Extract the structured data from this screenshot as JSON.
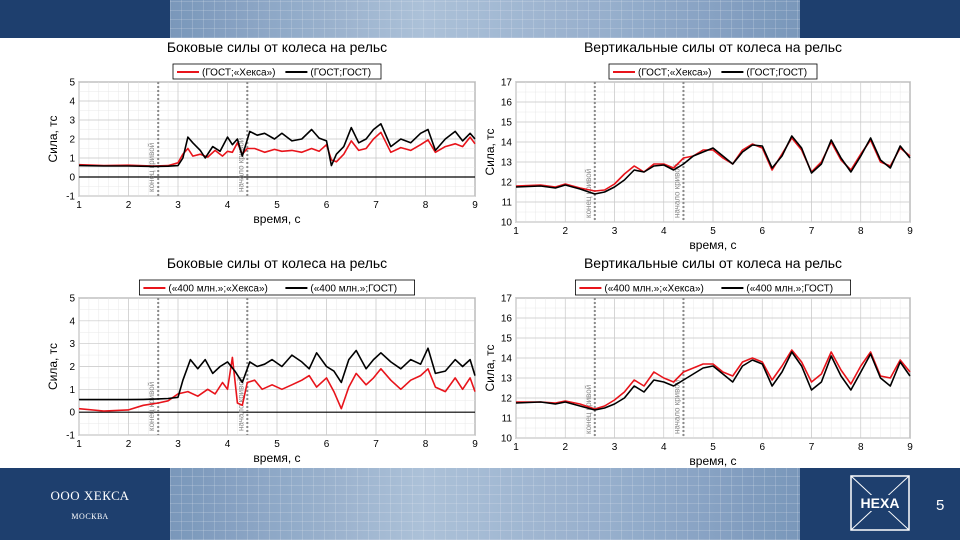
{
  "footer": {
    "company": "ООО ХЕКСА",
    "city": "МОСКВА",
    "logo_text": "HEXA",
    "page_number": "5"
  },
  "colors": {
    "band": "#1e3f6e",
    "series_red": "#e8141b",
    "series_black": "#000000",
    "marker": "#8a8a8a"
  },
  "chart_data": [
    {
      "type": "line",
      "title": "Боковые силы от колеса на рельс",
      "xlabel": "время, с",
      "ylabel": "Сила, тс",
      "xlim": [
        1,
        9
      ],
      "ylim": [
        -1,
        5
      ],
      "xticks": [
        1,
        2,
        3,
        4,
        5,
        6,
        7,
        8,
        9
      ],
      "yticks": [
        -1,
        0,
        1,
        2,
        3,
        4,
        5
      ],
      "grid": true,
      "legend": "top-center",
      "markers": [
        {
          "x": 2.6,
          "label": "конец кривой"
        },
        {
          "x": 4.4,
          "label": "начало кривой"
        }
      ],
      "series": [
        {
          "name": "(ГОСТ;«Хекса»)",
          "color": "#e8141b",
          "x": [
            1,
            1.5,
            2,
            2.5,
            2.8,
            3.0,
            3.1,
            3.2,
            3.3,
            3.45,
            3.6,
            3.75,
            3.9,
            4.0,
            4.1,
            4.2,
            4.3,
            4.4,
            4.55,
            4.75,
            4.95,
            5.1,
            5.3,
            5.5,
            5.7,
            5.85,
            6.0,
            6.1,
            6.2,
            6.35,
            6.5,
            6.65,
            6.8,
            6.95,
            7.1,
            7.3,
            7.5,
            7.7,
            7.9,
            8.05,
            8.2,
            8.4,
            8.6,
            8.75,
            8.9,
            9.0
          ],
          "y": [
            0.65,
            0.6,
            0.62,
            0.58,
            0.6,
            0.75,
            1.2,
            1.5,
            1.1,
            1.2,
            1.05,
            1.4,
            1.1,
            1.35,
            1.3,
            1.8,
            1.2,
            1.5,
            1.5,
            1.3,
            1.45,
            1.35,
            1.4,
            1.3,
            1.5,
            1.35,
            1.7,
            0.9,
            0.8,
            1.2,
            1.9,
            1.4,
            1.5,
            2.0,
            2.35,
            1.3,
            1.55,
            1.4,
            1.7,
            1.95,
            1.3,
            1.6,
            1.75,
            1.6,
            2.1,
            1.75
          ]
        },
        {
          "name": "(ГОСТ;ГОСТ)",
          "color": "#000000",
          "x": [
            1,
            1.5,
            2,
            2.5,
            2.8,
            3.0,
            3.1,
            3.2,
            3.3,
            3.45,
            3.55,
            3.7,
            3.85,
            4.0,
            4.1,
            4.2,
            4.3,
            4.45,
            4.6,
            4.75,
            4.95,
            5.1,
            5.3,
            5.5,
            5.7,
            5.85,
            6.0,
            6.1,
            6.2,
            6.35,
            6.5,
            6.65,
            6.8,
            6.95,
            7.1,
            7.3,
            7.5,
            7.7,
            7.9,
            8.05,
            8.2,
            8.4,
            8.6,
            8.75,
            8.9,
            9.0
          ],
          "y": [
            0.6,
            0.58,
            0.58,
            0.56,
            0.57,
            0.6,
            1.0,
            2.1,
            1.8,
            1.4,
            1.0,
            1.6,
            1.35,
            2.1,
            1.7,
            2.0,
            1.1,
            2.4,
            2.2,
            2.3,
            2.0,
            2.3,
            1.9,
            2.0,
            2.5,
            2.05,
            1.9,
            0.6,
            1.2,
            1.6,
            2.6,
            1.8,
            2.0,
            2.5,
            2.8,
            1.6,
            2.0,
            1.8,
            2.3,
            2.5,
            1.4,
            2.0,
            2.4,
            1.9,
            2.3,
            2.0
          ]
        }
      ]
    },
    {
      "type": "line",
      "title": "Вертикальные силы от колеса на рельс",
      "xlabel": "время, с",
      "ylabel": "Сила, тс",
      "xlim": [
        1,
        9
      ],
      "ylim": [
        10,
        17
      ],
      "xticks": [
        1,
        2,
        3,
        4,
        5,
        6,
        7,
        8,
        9
      ],
      "yticks": [
        10,
        11,
        12,
        13,
        14,
        15,
        16,
        17
      ],
      "grid": true,
      "legend": "top-center",
      "markers": [
        {
          "x": 2.6,
          "label": "конец кривой"
        },
        {
          "x": 4.4,
          "label": "начало кривой"
        }
      ],
      "series": [
        {
          "name": "(ГОСТ;«Хекса»)",
          "color": "#e8141b",
          "x": [
            1,
            1.5,
            1.8,
            2.0,
            2.3,
            2.6,
            2.8,
            3.0,
            3.2,
            3.4,
            3.6,
            3.8,
            4.0,
            4.2,
            4.4,
            4.6,
            4.8,
            5.0,
            5.2,
            5.4,
            5.6,
            5.8,
            6.0,
            6.2,
            6.4,
            6.6,
            6.8,
            7.0,
            7.2,
            7.4,
            7.6,
            7.8,
            8.0,
            8.2,
            8.4,
            8.6,
            8.8,
            9.0
          ],
          "y": [
            11.8,
            11.85,
            11.75,
            11.9,
            11.7,
            11.55,
            11.6,
            11.9,
            12.4,
            12.8,
            12.5,
            12.9,
            12.9,
            12.7,
            13.2,
            13.3,
            13.6,
            13.6,
            13.2,
            12.9,
            13.6,
            13.9,
            13.7,
            12.6,
            13.4,
            14.2,
            13.6,
            12.5,
            13.0,
            14.0,
            13.1,
            12.6,
            13.4,
            14.1,
            13.0,
            12.8,
            13.7,
            13.3
          ]
        },
        {
          "name": "(ГОСТ;ГОСТ)",
          "color": "#000000",
          "x": [
            1,
            1.5,
            1.8,
            2.0,
            2.3,
            2.6,
            2.8,
            3.0,
            3.2,
            3.4,
            3.6,
            3.8,
            4.0,
            4.2,
            4.4,
            4.6,
            4.8,
            5.0,
            5.2,
            5.4,
            5.6,
            5.8,
            6.0,
            6.2,
            6.4,
            6.6,
            6.8,
            7.0,
            7.2,
            7.4,
            7.6,
            7.8,
            8.0,
            8.2,
            8.4,
            8.6,
            8.8,
            9.0
          ],
          "y": [
            11.75,
            11.8,
            11.7,
            11.85,
            11.65,
            11.4,
            11.5,
            11.75,
            12.1,
            12.6,
            12.5,
            12.8,
            12.85,
            12.6,
            12.9,
            13.3,
            13.5,
            13.7,
            13.3,
            12.9,
            13.5,
            13.85,
            13.8,
            12.7,
            13.3,
            14.3,
            13.7,
            12.45,
            12.9,
            14.1,
            13.2,
            12.5,
            13.3,
            14.2,
            13.1,
            12.7,
            13.8,
            13.2
          ]
        }
      ]
    },
    {
      "type": "line",
      "title": "Боковые силы от колеса на рельс",
      "xlabel": "время, с",
      "ylabel": "Сила, тс",
      "xlim": [
        1,
        9
      ],
      "ylim": [
        -1,
        5
      ],
      "xticks": [
        1,
        2,
        3,
        4,
        5,
        6,
        7,
        8,
        9
      ],
      "yticks": [
        -1,
        0,
        1,
        2,
        3,
        4,
        5
      ],
      "grid": true,
      "legend": "top-center",
      "markers": [
        {
          "x": 2.6,
          "label": "конец кривой"
        },
        {
          "x": 4.4,
          "label": "начало кривой"
        }
      ],
      "series": [
        {
          "name": "(«400 млн.»;«Хекса»)",
          "color": "#e8141b",
          "x": [
            1,
            1.5,
            2,
            2.3,
            2.6,
            2.8,
            3.0,
            3.2,
            3.4,
            3.6,
            3.75,
            3.9,
            4.0,
            4.1,
            4.2,
            4.3,
            4.4,
            4.55,
            4.7,
            4.9,
            5.1,
            5.3,
            5.5,
            5.65,
            5.8,
            6.0,
            6.15,
            6.3,
            6.45,
            6.6,
            6.8,
            6.95,
            7.1,
            7.3,
            7.5,
            7.7,
            7.9,
            8.05,
            8.2,
            8.4,
            8.6,
            8.75,
            8.9,
            9.0
          ],
          "y": [
            0.15,
            0.05,
            0.1,
            0.3,
            0.4,
            0.5,
            0.8,
            0.9,
            0.7,
            1.0,
            0.8,
            1.3,
            1.0,
            2.4,
            0.4,
            0.3,
            1.3,
            1.4,
            1.0,
            1.2,
            1.0,
            1.2,
            1.4,
            1.6,
            1.1,
            1.5,
            0.9,
            0.15,
            1.1,
            1.7,
            1.2,
            1.5,
            1.9,
            1.4,
            1.0,
            1.4,
            1.6,
            1.9,
            1.1,
            0.9,
            1.5,
            1.0,
            1.5,
            0.9
          ]
        },
        {
          "name": "(«400 млн.»;ГОСТ)",
          "color": "#000000",
          "x": [
            1,
            1.5,
            2,
            2.3,
            2.6,
            2.8,
            3.0,
            3.1,
            3.25,
            3.4,
            3.55,
            3.7,
            3.85,
            4.0,
            4.15,
            4.3,
            4.45,
            4.6,
            4.75,
            4.9,
            5.1,
            5.3,
            5.5,
            5.65,
            5.8,
            6.0,
            6.15,
            6.3,
            6.45,
            6.6,
            6.8,
            6.95,
            7.1,
            7.3,
            7.5,
            7.7,
            7.9,
            8.05,
            8.2,
            8.4,
            8.6,
            8.75,
            8.9,
            9.0
          ],
          "y": [
            0.55,
            0.55,
            0.55,
            0.56,
            0.58,
            0.6,
            0.65,
            1.4,
            2.3,
            1.9,
            2.3,
            1.7,
            2.0,
            2.2,
            1.8,
            1.3,
            2.2,
            2.0,
            2.1,
            2.3,
            2.0,
            2.5,
            2.2,
            1.9,
            2.6,
            2.0,
            1.8,
            1.3,
            2.3,
            2.7,
            1.9,
            2.3,
            2.6,
            2.2,
            1.9,
            2.3,
            2.1,
            2.8,
            1.7,
            1.8,
            2.3,
            2.0,
            2.3,
            1.6
          ]
        }
      ]
    },
    {
      "type": "line",
      "title": "Вертикальные силы от колеса на рельс",
      "xlabel": "время, с",
      "ylabel": "Сила, тс",
      "xlim": [
        1,
        9
      ],
      "ylim": [
        10,
        17
      ],
      "xticks": [
        1,
        2,
        3,
        4,
        5,
        6,
        7,
        8,
        9
      ],
      "yticks": [
        10,
        11,
        12,
        13,
        14,
        15,
        16,
        17
      ],
      "grid": true,
      "legend": "top-center",
      "markers": [
        {
          "x": 2.6,
          "label": "конец кривой"
        },
        {
          "x": 4.4,
          "label": "начало кривой"
        }
      ],
      "series": [
        {
          "name": "(«400 млн.»;«Хекса»)",
          "color": "#e8141b",
          "x": [
            1,
            1.5,
            1.8,
            2.0,
            2.3,
            2.6,
            2.8,
            3.0,
            3.2,
            3.4,
            3.6,
            3.8,
            4.0,
            4.2,
            4.4,
            4.6,
            4.8,
            5.0,
            5.2,
            5.4,
            5.6,
            5.8,
            6.0,
            6.2,
            6.4,
            6.6,
            6.8,
            7.0,
            7.2,
            7.4,
            7.6,
            7.8,
            8.0,
            8.2,
            8.4,
            8.6,
            8.8,
            9.0
          ],
          "y": [
            11.8,
            11.8,
            11.75,
            11.85,
            11.7,
            11.45,
            11.6,
            11.9,
            12.3,
            12.9,
            12.6,
            13.3,
            13.0,
            12.8,
            13.3,
            13.5,
            13.7,
            13.7,
            13.3,
            13.1,
            13.8,
            14.0,
            13.8,
            12.9,
            13.6,
            14.4,
            13.8,
            12.8,
            13.2,
            14.3,
            13.4,
            12.7,
            13.6,
            14.3,
            13.1,
            13.0,
            13.9,
            13.3
          ]
        },
        {
          "name": "(«400 млн.»;ГОСТ)",
          "color": "#000000",
          "x": [
            1,
            1.5,
            1.8,
            2.0,
            2.3,
            2.6,
            2.8,
            3.0,
            3.2,
            3.4,
            3.6,
            3.8,
            4.0,
            4.2,
            4.4,
            4.6,
            4.8,
            5.0,
            5.2,
            5.4,
            5.6,
            5.8,
            6.0,
            6.2,
            6.4,
            6.6,
            6.8,
            7.0,
            7.2,
            7.4,
            7.6,
            7.8,
            8.0,
            8.2,
            8.4,
            8.6,
            8.8,
            9.0
          ],
          "y": [
            11.75,
            11.8,
            11.7,
            11.8,
            11.6,
            11.4,
            11.5,
            11.7,
            12.0,
            12.6,
            12.3,
            12.9,
            12.8,
            12.6,
            12.9,
            13.2,
            13.5,
            13.6,
            13.2,
            12.8,
            13.6,
            13.9,
            13.7,
            12.6,
            13.3,
            14.3,
            13.6,
            12.4,
            12.8,
            14.1,
            13.1,
            12.4,
            13.3,
            14.2,
            13.0,
            12.6,
            13.8,
            13.1
          ]
        }
      ]
    }
  ]
}
